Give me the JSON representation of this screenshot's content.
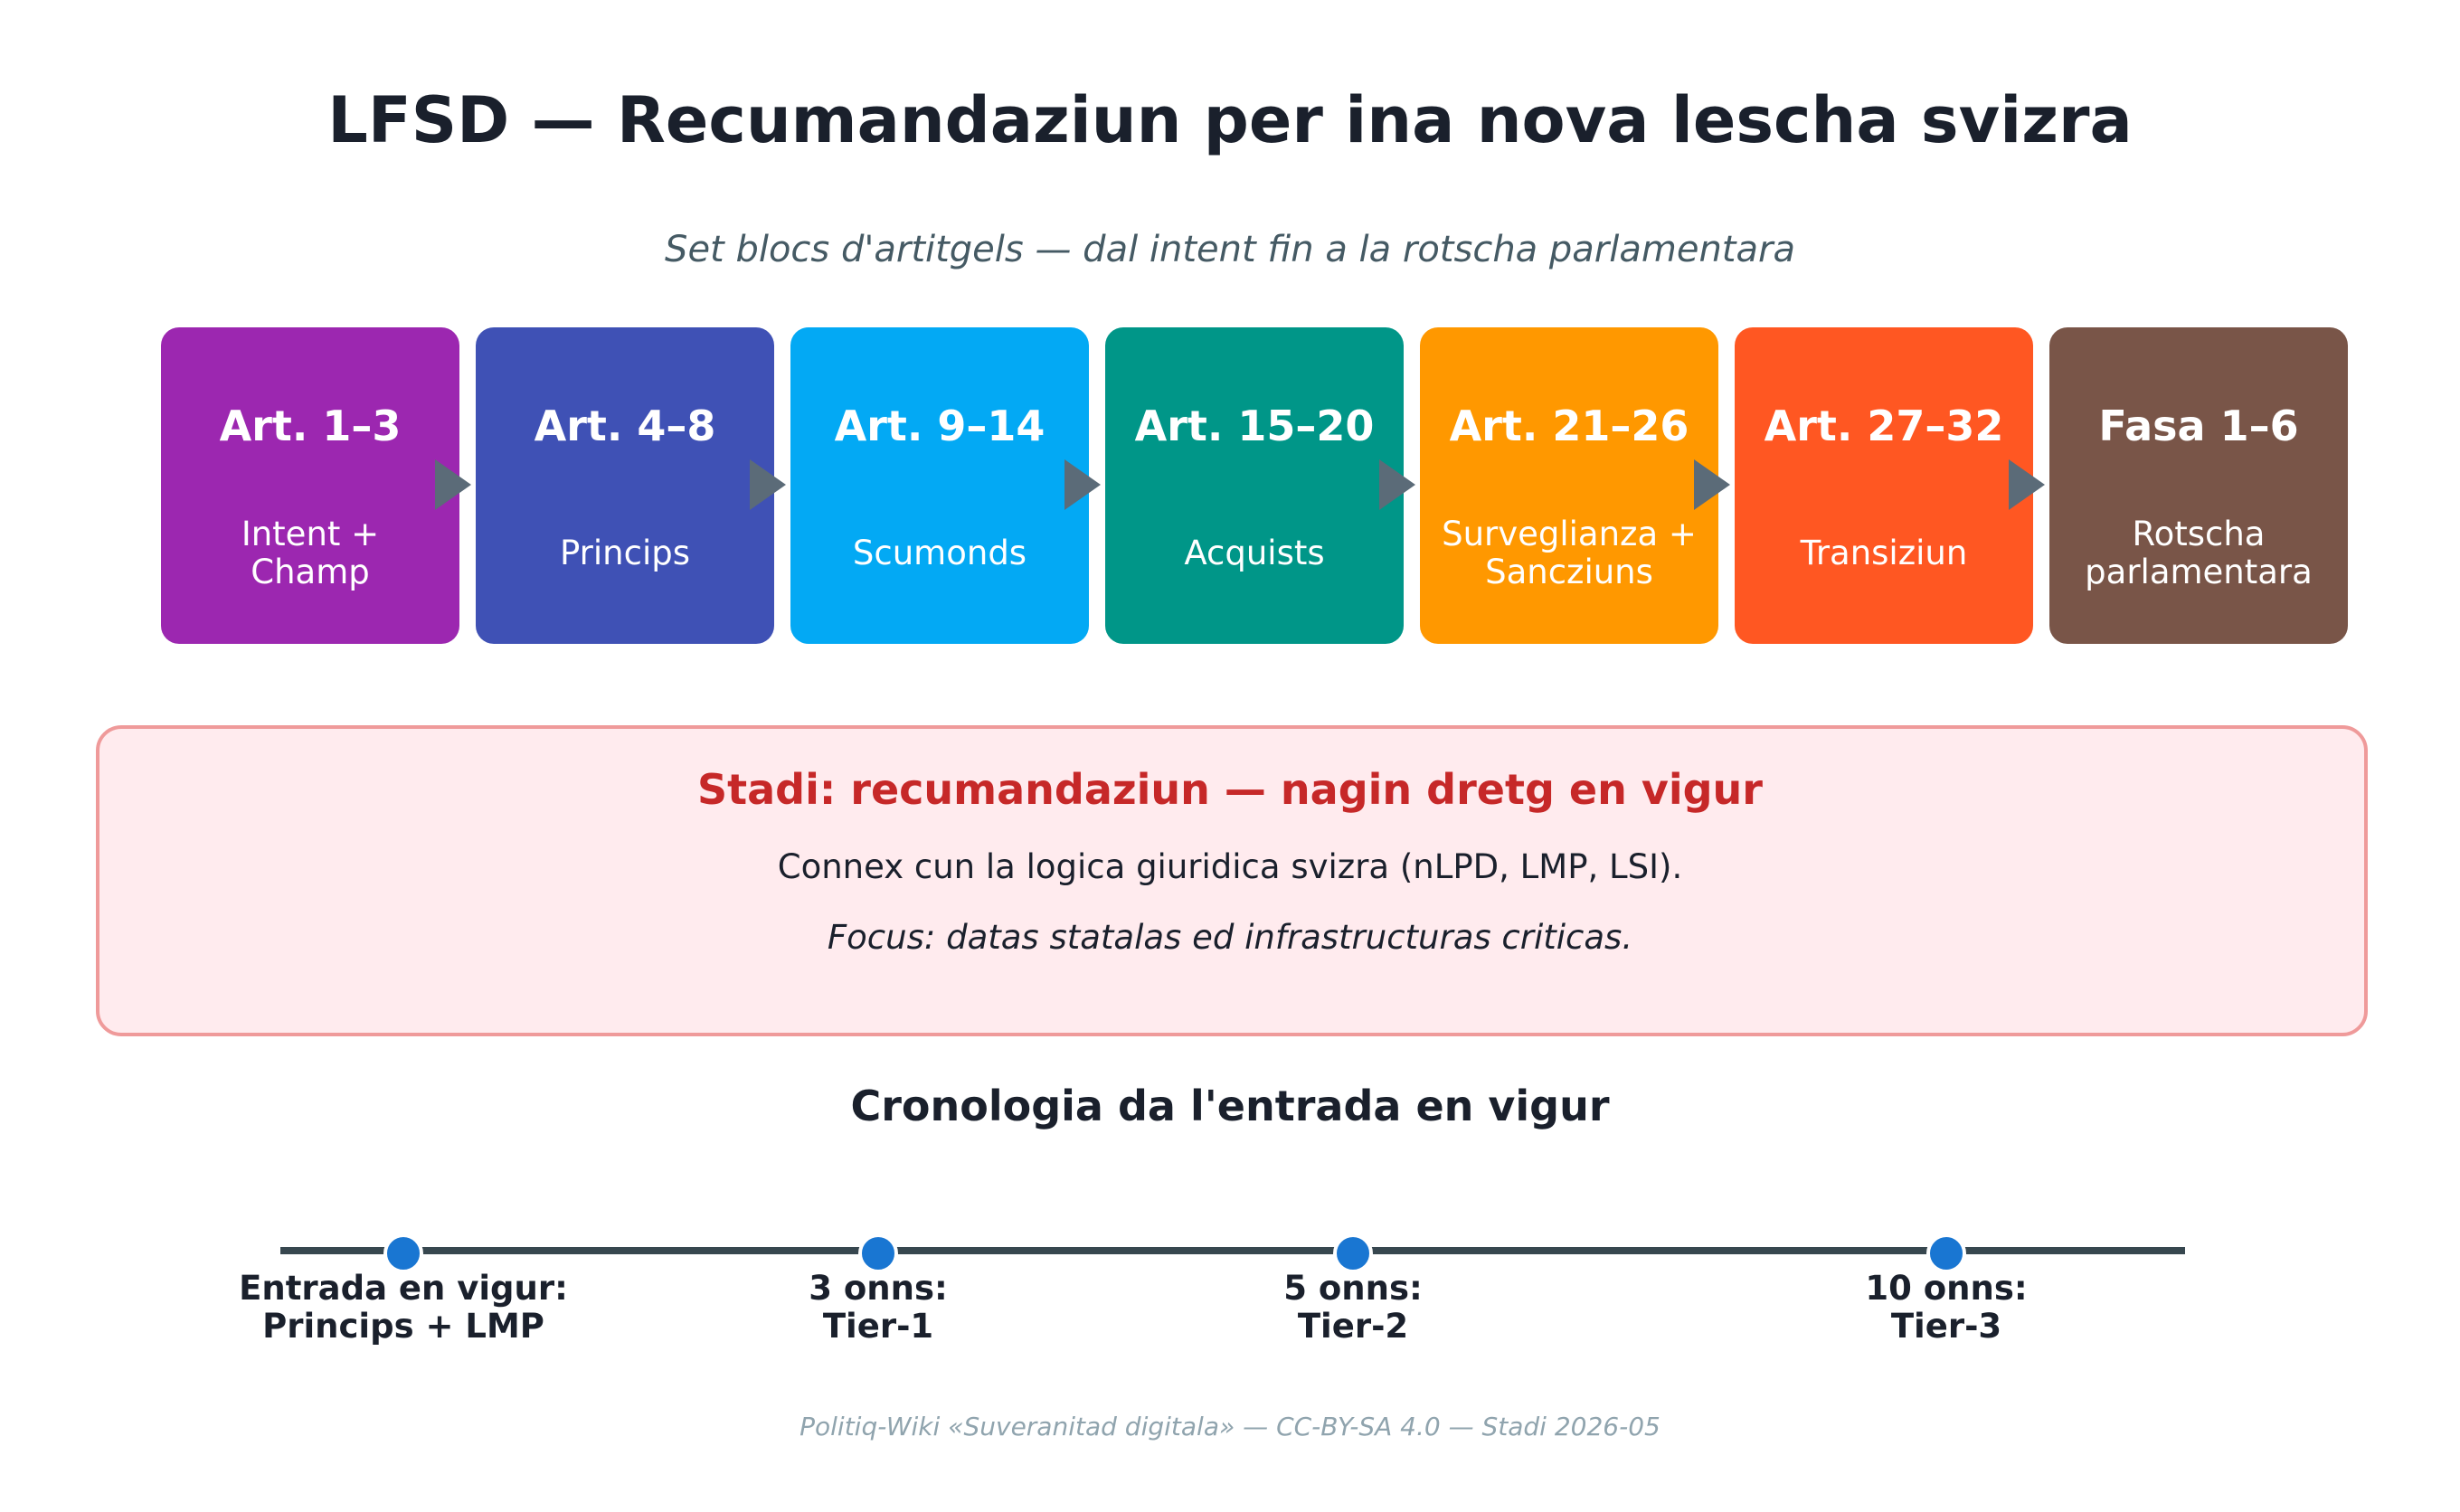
{
  "title": "LFSD — Recumandaziun per ina nova lescha svizra",
  "subtitle": "Set blocs d'artitgels — dal intent fin a la rotscha parlamentara",
  "blocks": [
    {
      "title": "Art. 1–3",
      "desc": "Intent +\nChamp",
      "color": "#9c27b0"
    },
    {
      "title": "Art. 4–8",
      "desc": "Princips",
      "color": "#3f51b5"
    },
    {
      "title": "Art. 9–14",
      "desc": "Scumonds",
      "color": "#03a9f4"
    },
    {
      "title": "Art. 15–20",
      "desc": "Acquists",
      "color": "#009688"
    },
    {
      "title": "Art. 21–26",
      "desc": "Surveglianza +\nSancziuns",
      "color": "#ff9800"
    },
    {
      "title": "Art. 27–32",
      "desc": "Transiziun",
      "color": "#ff5722"
    },
    {
      "title": "Fasa 1–6",
      "desc": "Rotscha\nparlamentara",
      "color": "#795548"
    }
  ],
  "status": {
    "title": "Stadi: recumandaziun — nagin dretg en vigur",
    "line": "Connex cun la logica giuridica svizra (nLPD, LMP, LSI).",
    "focus": "Focus: datas statalas ed infrastructuras criticas."
  },
  "chronology": {
    "title": "Cronologia da l'entrada en vigur",
    "milestones": [
      {
        "label": "Entrada en vigur:\nPrincips + LMP"
      },
      {
        "label": "3 onns:\nTier-1"
      },
      {
        "label": "5 onns:\nTier-2"
      },
      {
        "label": "10 onns:\nTier-3"
      }
    ]
  },
  "footer": "Politiq-Wiki «Suveranitad digitala» — CC-BY-SA 4.0 — Stadi 2026-05"
}
